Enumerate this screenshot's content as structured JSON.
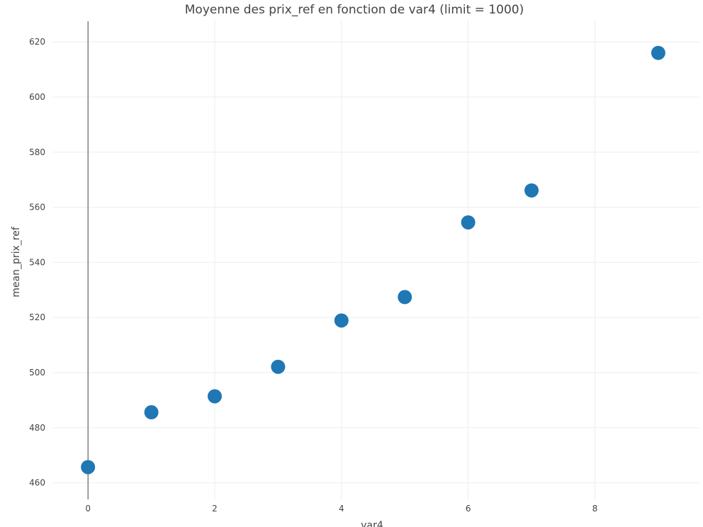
{
  "chart_data": {
    "type": "scatter",
    "title": "Moyenne des prix_ref en fonction de var4 (limit = 1000)",
    "xlabel": "var4",
    "ylabel": "mean_prix_ref",
    "xlim": [
      -0.55,
      9.65
    ],
    "ylim": [
      454,
      628
    ],
    "x_ticks": [
      0,
      2,
      4,
      6,
      8
    ],
    "y_ticks": [
      460,
      480,
      500,
      520,
      540,
      560,
      580,
      600,
      620
    ],
    "grid": true,
    "marker_color": "#1f77b4",
    "series": [
      {
        "x": [
          0,
          1,
          2,
          3,
          4,
          5,
          6,
          7,
          9
        ],
        "y": [
          465.7,
          485.6,
          491.4,
          502.1,
          518.9,
          527.4,
          554.5,
          566.1,
          616
        ]
      }
    ]
  }
}
